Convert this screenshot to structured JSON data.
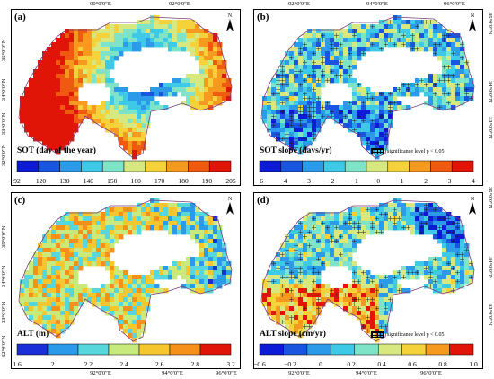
{
  "panels": [
    {
      "label": "(a)",
      "legend_title": "SOT (day of the year)",
      "ticks": [
        "92",
        "120",
        "130",
        "140",
        "150",
        "160",
        "170",
        "180",
        "190",
        "205"
      ],
      "colors": [
        "#0b1bd6",
        "#1a55e0",
        "#2b9ae8",
        "#3ec9e6",
        "#7fe3c8",
        "#d8e880",
        "#f5d23a",
        "#f59a1e",
        "#ef5a10",
        "#e11408"
      ],
      "significance": ""
    },
    {
      "label": "(b)",
      "legend_title": "SOT slope (days/yr)",
      "ticks": [
        "−6",
        "−4",
        "−3",
        "−2",
        "−1",
        "0",
        "1",
        "2",
        "3",
        "4"
      ],
      "colors": [
        "#0b1bd6",
        "#1a55e0",
        "#2b9ae8",
        "#3ec9e6",
        "#7fe3c8",
        "#d8e880",
        "#f5d23a",
        "#f59a1e",
        "#ef5a10",
        "#e11408"
      ],
      "significance": "significance level  p < 0.05"
    },
    {
      "label": "(c)",
      "legend_title": "ALT (m)",
      "ticks": [
        "1.6",
        "2",
        "2.2",
        "2.4",
        "2.6",
        "2.8",
        "3.2"
      ],
      "colors": [
        "#1a2fd8",
        "#2b9ae8",
        "#57d6dc",
        "#c8ea7c",
        "#f5c62e",
        "#f5901a",
        "#e11408"
      ],
      "significance": ""
    },
    {
      "label": "(d)",
      "legend_title": "ALT slope (cm/yr)",
      "ticks": [
        "−0.6",
        "−0.2",
        "0",
        "0.2",
        "0.4",
        "0.6",
        "0.8",
        "1.0"
      ],
      "colors": [
        "#0b1bd6",
        "#1a55e0",
        "#2b9ae8",
        "#3ec9e6",
        "#7fe3c8",
        "#d8e880",
        "#f5d23a",
        "#f59a1e",
        "#e11408"
      ],
      "significance": "significance level  p < 0.05"
    }
  ],
  "lon_labels": [
    "90°0′0″E",
    "92°0′0″E",
    "94°0′0″E",
    "96°0′0″E"
  ],
  "lat_labels": [
    "35°0′0″N",
    "34°0′0″N",
    "33°0′0″N",
    "32°0′0″N"
  ],
  "north_label": "N"
}
